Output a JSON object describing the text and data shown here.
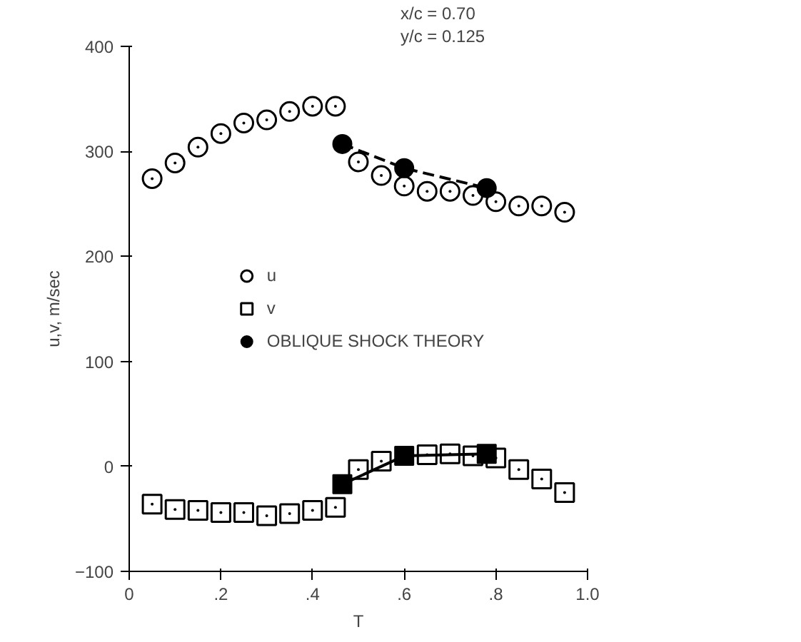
{
  "chart_data": {
    "type": "scatter",
    "xlabel": "T",
    "ylabel": "u,v, m/sec",
    "annotations": [
      "x/c = 0.70",
      "y/c = 0.125"
    ],
    "xlim": [
      0,
      1.0
    ],
    "xticks": [
      0,
      {
        "value": 0.2,
        "label": ".2"
      },
      {
        "value": 0.4,
        "label": ".4"
      },
      {
        "value": 0.6,
        "label": ".6"
      },
      {
        "value": 0.8,
        "label": ".8"
      },
      {
        "value": 1.0,
        "label": "1.0"
      }
    ],
    "ylim": [
      -100,
      400
    ],
    "yticks": [
      -100,
      0,
      100,
      200,
      300,
      400
    ],
    "grid": false,
    "legend": "center",
    "series": [
      {
        "name": "u",
        "marker": "circle",
        "color": "#000000",
        "x": [
          0.05,
          0.1,
          0.15,
          0.2,
          0.25,
          0.3,
          0.35,
          0.4,
          0.45,
          0.5,
          0.55,
          0.6,
          0.65,
          0.7,
          0.75,
          0.8,
          0.85,
          0.9,
          0.95
        ],
        "values": [
          274,
          289,
          304,
          317,
          327,
          330,
          338,
          343,
          343,
          290,
          277,
          267,
          262,
          262,
          258,
          252,
          248,
          248,
          242
        ]
      },
      {
        "name": "v",
        "marker": "square",
        "color": "#000000",
        "x": [
          0.05,
          0.1,
          0.15,
          0.2,
          0.25,
          0.3,
          0.35,
          0.4,
          0.45,
          0.5,
          0.55,
          0.65,
          0.7,
          0.75,
          0.8,
          0.85,
          0.9,
          0.95
        ],
        "values": [
          -36,
          -41,
          -42,
          -44,
          -44,
          -47,
          -45,
          -42,
          -39,
          -3,
          5,
          11,
          12,
          10,
          8,
          -3,
          -12,
          -25
        ]
      },
      {
        "type": "line",
        "marker": "square",
        "line_style": "solid",
        "color": "#000000",
        "x": [
          0.465,
          0.6,
          0.78
        ],
        "values": [
          -17,
          10,
          12
        ]
      },
      {
        "name": "OBLIQUE SHOCK THEORY",
        "type": "line",
        "marker": "circle",
        "line_style": "dashed",
        "color": "#000000",
        "x": [
          0.465,
          0.6,
          0.78
        ],
        "values": [
          307,
          284,
          265
        ]
      }
    ]
  }
}
